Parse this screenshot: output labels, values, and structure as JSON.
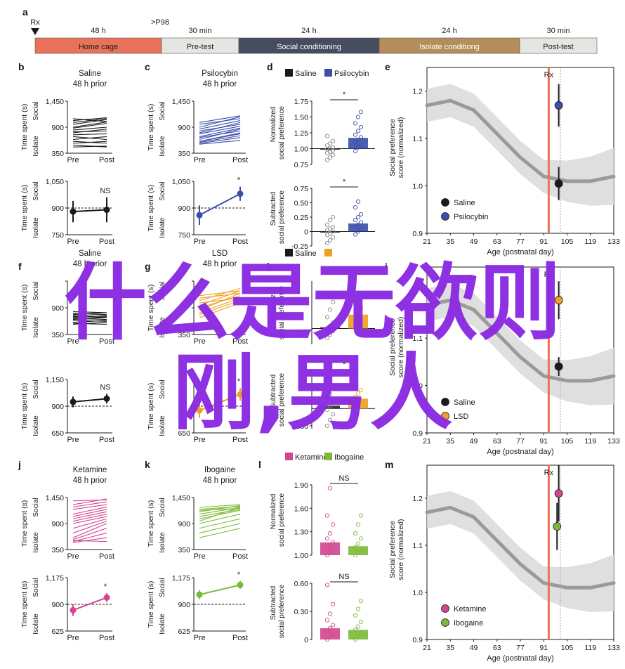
{
  "timeline": {
    "panel_label": "a",
    "rx_label": "Rx",
    "p98_label": ">P98",
    "segments": [
      {
        "label": "Home cage",
        "duration": "48 h",
        "color": "#e8735a"
      },
      {
        "label": "Pre-test",
        "duration": "30 min",
        "color": "#e5e6e1"
      },
      {
        "label": "Social conditioning",
        "duration": "24 h",
        "color": "#454d5e"
      },
      {
        "label": "Isolate conditiong",
        "duration": "24 h",
        "color": "#b38e5a"
      },
      {
        "label": "Post-test",
        "duration": "30 min",
        "color": "#e5e6e1"
      }
    ]
  },
  "overlay": {
    "line1": "什么是无欲则",
    "line2": "刚,男人"
  },
  "chart_data": [
    {
      "id": "b",
      "type": "line",
      "title": "Saline",
      "subtitle": "48 h prior",
      "color": "#1a1a1a",
      "xcategories": [
        "Pre",
        "Post"
      ],
      "ylabel": "Time spent (s)",
      "yside_top": "Social",
      "yside_bottom": "Isolate",
      "ylim": [
        350,
        1450
      ],
      "yticks": [
        "1,450",
        "900",
        "350"
      ],
      "pairs": [
        [
          1080,
          1020
        ],
        [
          1040,
          1100
        ],
        [
          1000,
          1080
        ],
        [
          960,
          1060
        ],
        [
          900,
          1010
        ],
        [
          880,
          980
        ],
        [
          840,
          900
        ],
        [
          800,
          820
        ],
        [
          780,
          860
        ],
        [
          740,
          760
        ],
        [
          700,
          640
        ],
        [
          640,
          700
        ],
        [
          600,
          560
        ],
        [
          560,
          600
        ],
        [
          520,
          480
        ],
        [
          480,
          500
        ]
      ]
    },
    {
      "id": "b2",
      "type": "line",
      "color": "#1a1a1a",
      "xcategories": [
        "Pre",
        "Post"
      ],
      "ylabel": "Time spent (s)",
      "yside_top": "Social",
      "yside_bottom": "Isolate",
      "ylim": [
        750,
        1050
      ],
      "yticks": [
        "1,050",
        "900",
        "750"
      ],
      "ref": 900,
      "annotation": "NS",
      "means": [
        880,
        890
      ],
      "err": [
        60,
        70
      ]
    },
    {
      "id": "c",
      "type": "line",
      "title": "Psilocybin",
      "subtitle": "48 h prior",
      "color": "#3b4ea8",
      "xcategories": [
        "Pre",
        "Post"
      ],
      "ylabel": "Time spent (s)",
      "yside_top": "Social",
      "yside_bottom": "Isolate",
      "ylim": [
        350,
        1450
      ],
      "yticks": [
        "1,450",
        "900",
        "350"
      ],
      "pairs": [
        [
          1000,
          1140
        ],
        [
          960,
          1080
        ],
        [
          900,
          1120
        ],
        [
          860,
          1040
        ],
        [
          820,
          960
        ],
        [
          780,
          1000
        ],
        [
          760,
          920
        ],
        [
          700,
          880
        ],
        [
          680,
          820
        ],
        [
          640,
          860
        ],
        [
          600,
          780
        ],
        [
          580,
          720
        ],
        [
          560,
          680
        ],
        [
          540,
          620
        ],
        [
          600,
          760
        ]
      ]
    },
    {
      "id": "c2",
      "type": "line",
      "color": "#3b4ea8",
      "xcategories": [
        "Pre",
        "Post"
      ],
      "ylabel": "Time spent (s)",
      "yside_top": "Social",
      "yside_bottom": "Isolate",
      "ylim": [
        750,
        1050
      ],
      "yticks": [
        "1,050",
        "900",
        "750"
      ],
      "ref": 900,
      "annotation": "*",
      "means": [
        860,
        980
      ],
      "err": [
        55,
        40
      ]
    },
    {
      "id": "d",
      "type": "bar",
      "legend": [
        "Saline",
        "Psilocybin"
      ],
      "colors": [
        "#1a1a1a",
        "#3b4ea8"
      ],
      "ylabel": "Normalized social preference",
      "ylim": [
        0.75,
        1.75
      ],
      "yticks": [
        "1.75",
        "1.50",
        "1.25",
        "1.00",
        "0.75"
      ],
      "ref": 1.0,
      "annotation": "*",
      "values": [
        0.99,
        1.17
      ],
      "points": [
        [
          0.82,
          0.86,
          0.9,
          0.93,
          0.95,
          0.97,
          0.99,
          1.0,
          1.02,
          1.05,
          1.08,
          1.12,
          1.2
        ],
        [
          0.96,
          1.02,
          1.06,
          1.1,
          1.14,
          1.18,
          1.22,
          1.28,
          1.34,
          1.4,
          1.5,
          1.58
        ]
      ]
    },
    {
      "id": "d2",
      "type": "bar",
      "colors": [
        "#1a1a1a",
        "#3b4ea8"
      ],
      "ylabel": "Subtracted social preference",
      "ylim": [
        -0.25,
        0.75
      ],
      "yticks": [
        "0.75",
        "0.50",
        "0.25",
        "0",
        "-0.25"
      ],
      "ref": 0,
      "annotation": "*",
      "values": [
        0.0,
        0.14
      ],
      "points": [
        [
          -0.2,
          -0.15,
          -0.1,
          -0.06,
          -0.03,
          0.0,
          0.02,
          0.05,
          0.08,
          0.12,
          0.2,
          0.25
        ],
        [
          -0.05,
          0.0,
          0.04,
          0.08,
          0.12,
          0.16,
          0.2,
          0.25,
          0.3,
          0.42,
          0.52
        ]
      ]
    },
    {
      "id": "e",
      "type": "scatter",
      "title": "Rx",
      "ylabel": "Social preference score (normalized)",
      "xlabel": "Age (postnatal day)",
      "xlim": [
        21,
        133
      ],
      "xticks": [
        21,
        35,
        49,
        63,
        77,
        91,
        105,
        119,
        133
      ],
      "ylim": [
        0.9,
        1.25
      ],
      "yticks": [
        0.9,
        1.0,
        1.1,
        1.2
      ],
      "rx": 94,
      "dotted": 101,
      "trend": [
        [
          21,
          1.17
        ],
        [
          35,
          1.18
        ],
        [
          49,
          1.16
        ],
        [
          63,
          1.11
        ],
        [
          77,
          1.06
        ],
        [
          91,
          1.02
        ],
        [
          105,
          1.01
        ],
        [
          119,
          1.01
        ],
        [
          133,
          1.02
        ]
      ],
      "series": [
        {
          "name": "Saline",
          "color": "#1a1a1a",
          "x": 100,
          "y": 1.005,
          "err": 0.035
        },
        {
          "name": "Psilocybin",
          "color": "#3b4ea8",
          "x": 100,
          "y": 1.17,
          "err": 0.045
        }
      ]
    },
    {
      "id": "f",
      "type": "line",
      "title": "Saline",
      "subtitle": "48 h prior",
      "color": "#1a1a1a",
      "xcategories": [
        "Pre",
        "Post"
      ],
      "ylabel": "Time spent (s)",
      "yside_top": "Social",
      "yside_bottom": "Isolate",
      "ylim": [
        350,
        1450
      ],
      "yticks": [
        "",
        "900",
        "350"
      ],
      "pairs": [
        [
          820,
          800
        ],
        [
          780,
          760
        ],
        [
          760,
          800
        ],
        [
          740,
          720
        ],
        [
          720,
          700
        ],
        [
          700,
          740
        ],
        [
          680,
          660
        ],
        [
          660,
          700
        ],
        [
          640,
          620
        ],
        [
          600,
          640
        ],
        [
          580,
          560
        ],
        [
          560,
          600
        ]
      ]
    },
    {
      "id": "f2",
      "type": "line",
      "color": "#1a1a1a",
      "xcategories": [
        "Pre",
        "Post"
      ],
      "ylabel": "Time spent (s)",
      "yside_top": "Social",
      "yside_bottom": "Isolate",
      "ylim": [
        650,
        1150
      ],
      "yticks": [
        "1,150",
        "900",
        "650"
      ],
      "ref": 900,
      "annotation": "NS",
      "means": [
        940,
        970
      ],
      "err": [
        50,
        45
      ]
    },
    {
      "id": "g",
      "type": "line",
      "title": "LSD",
      "subtitle": "48 h prior",
      "color": "#f0a020",
      "xcategories": [
        "Pre",
        "Post"
      ],
      "ylabel": "Time spent (s)",
      "yside_top": "Social",
      "yside_bottom": "Isolate",
      "ylim": [
        350,
        1450
      ],
      "yticks": [
        "",
        "",
        "350"
      ],
      "pairs": [
        [
          1150,
          1250
        ],
        [
          1100,
          1200
        ],
        [
          1050,
          1300
        ],
        [
          1000,
          1100
        ],
        [
          950,
          1250
        ],
        [
          900,
          1150
        ],
        [
          850,
          1200
        ],
        [
          800,
          1100
        ],
        [
          760,
          1050
        ],
        [
          700,
          1000
        ]
      ]
    },
    {
      "id": "g2",
      "type": "line",
      "color": "#f0a020",
      "xcategories": [
        "Pre",
        "Post"
      ],
      "ylabel": "Time spent (s)",
      "yside_top": "Social",
      "yside_bottom": "Isolate",
      "ylim": [
        650,
        1150
      ],
      "yticks": [
        "",
        "",
        "650"
      ],
      "ref": 900,
      "annotation": "*",
      "means": [
        860,
        1010
      ],
      "err": [
        70,
        60
      ]
    },
    {
      "id": "h",
      "type": "bar",
      "legend": [
        "Saline",
        ""
      ],
      "colors": [
        "#1a1a1a",
        "#f0a020"
      ],
      "ylabel": "Normalized social preference",
      "ylim": [
        0.75,
        1.75
      ],
      "yticks": [],
      "ref": 1.0,
      "annotation": "",
      "values": [
        1.02,
        1.22
      ],
      "points": [
        [
          0.85,
          0.9,
          0.96,
          1.0,
          1.04,
          1.1,
          1.18,
          1.3,
          1.42
        ],
        [
          1.0,
          1.08,
          1.14,
          1.2,
          1.26,
          1.32,
          1.4,
          1.5
        ]
      ]
    },
    {
      "id": "h2",
      "type": "bar",
      "colors": [
        "#1a1a1a",
        "#f0a020"
      ],
      "ylabel": "Subtracted social preference",
      "ylim": [
        -0.35,
        0.65
      ],
      "yticks": [
        "-0.30"
      ],
      "ref": 0,
      "annotation": "*",
      "values": [
        0.05,
        0.17
      ],
      "points": [
        [
          -0.3,
          -0.2,
          -0.1,
          -0.02,
          0.04,
          0.1,
          0.18,
          0.25
        ],
        [
          0.02,
          0.08,
          0.14,
          0.2,
          0.26,
          0.32,
          0.4
        ]
      ]
    },
    {
      "id": "i",
      "type": "scatter",
      "title": "Rx",
      "ylabel": "Social preference score (normalized)",
      "xlabel": "Age (postnatal day)",
      "xlim": [
        21,
        133
      ],
      "xticks": [
        21,
        35,
        49,
        63,
        77,
        91,
        105,
        119,
        133
      ],
      "ylim": [
        0.9,
        1.25
      ],
      "yticks": [
        0.9,
        1.0,
        1.1
      ],
      "rx": 94,
      "dotted": 101,
      "trend": [
        [
          21,
          1.17
        ],
        [
          35,
          1.18
        ],
        [
          49,
          1.16
        ],
        [
          63,
          1.11
        ],
        [
          77,
          1.06
        ],
        [
          91,
          1.02
        ],
        [
          105,
          1.01
        ],
        [
          119,
          1.01
        ],
        [
          133,
          1.02
        ]
      ],
      "series": [
        {
          "name": "Saline",
          "color": "#1a1a1a",
          "x": 100,
          "y": 1.04,
          "err": 0.02
        },
        {
          "name": "LSD",
          "color": "#f0a020",
          "x": 100,
          "y": 1.18,
          "err": 0.04
        }
      ]
    },
    {
      "id": "j",
      "type": "line",
      "title": "Ketamine",
      "subtitle": "48 h prior",
      "color": "#d1468f",
      "xcategories": [
        "Pre",
        "Post"
      ],
      "ylabel": "Time spent (s)",
      "yside_top": "Social",
      "yside_bottom": "Isolate",
      "ylim": [
        350,
        1450
      ],
      "yticks": [
        "1,450",
        "900",
        "350"
      ],
      "pairs": [
        [
          1380,
          1400
        ],
        [
          1300,
          1420
        ],
        [
          1250,
          1360
        ],
        [
          1200,
          1300
        ],
        [
          1100,
          1250
        ],
        [
          1050,
          1200
        ],
        [
          1000,
          1150
        ],
        [
          950,
          1100
        ],
        [
          900,
          1050
        ],
        [
          800,
          1000
        ],
        [
          700,
          950
        ],
        [
          600,
          900
        ],
        [
          560,
          800
        ],
        [
          520,
          700
        ],
        [
          500,
          600
        ],
        [
          540,
          520
        ]
      ]
    },
    {
      "id": "j2",
      "type": "line",
      "color": "#d1468f",
      "xcategories": [
        "Pre",
        "Post"
      ],
      "ylabel": "Time spent (s)",
      "yside_top": "Social",
      "yside_bottom": "Isolate",
      "ylim": [
        625,
        1175
      ],
      "yticks": [
        "1,175",
        "900",
        "625"
      ],
      "ref": 900,
      "annotation": "*",
      "means": [
        840,
        970
      ],
      "err": [
        60,
        45
      ]
    },
    {
      "id": "k",
      "type": "line",
      "title": "Ibogaine",
      "subtitle": "48 h prior",
      "color": "#7cb938",
      "xcategories": [
        "Pre",
        "Post"
      ],
      "ylabel": "Time spent (s)",
      "yside_top": "Social",
      "yside_bottom": "Isolate",
      "ylim": [
        350,
        1450
      ],
      "yticks": [
        "1,450",
        "900",
        "350"
      ],
      "pairs": [
        [
          1240,
          1300
        ],
        [
          1200,
          1260
        ],
        [
          1180,
          1220
        ],
        [
          1150,
          1280
        ],
        [
          1100,
          1240
        ],
        [
          1050,
          1200
        ],
        [
          1000,
          1180
        ],
        [
          950,
          1250
        ],
        [
          900,
          1100
        ],
        [
          800,
          1000
        ],
        [
          700,
          900
        ],
        [
          600,
          800
        ]
      ]
    },
    {
      "id": "k2",
      "type": "line",
      "color": "#7cb938",
      "xcategories": [
        "Pre",
        "Post"
      ],
      "ylabel": "Time spent (s)",
      "yside_top": "Social",
      "yside_bottom": "Isolate",
      "ylim": [
        625,
        1175
      ],
      "yticks": [
        "1,175",
        "900",
        "625"
      ],
      "ref": 900,
      "annotation": "*",
      "means": [
        1000,
        1100
      ],
      "err": [
        45,
        40
      ]
    },
    {
      "id": "l",
      "type": "bar",
      "legend": [
        "Ketamine",
        "Ibogaine"
      ],
      "colors": [
        "#d1468f",
        "#7cb938"
      ],
      "ylabel": "Normalized social preference",
      "ylim": [
        1.0,
        2.1
      ],
      "yticks": [
        "1.90",
        "1.60",
        "1.30",
        "1.00"
      ],
      "ref": null,
      "annotation": "NS",
      "values": [
        1.2,
        1.14
      ],
      "points": [
        [
          1.0,
          1.04,
          1.08,
          1.12,
          1.16,
          1.2,
          1.26,
          1.34,
          1.48,
          1.62,
          2.05
        ],
        [
          1.0,
          1.04,
          1.08,
          1.12,
          1.18,
          1.26,
          1.34,
          1.48,
          1.62
        ]
      ]
    },
    {
      "id": "l2",
      "type": "bar",
      "colors": [
        "#d1468f",
        "#7cb938"
      ],
      "ylabel": "Subtracted social preference",
      "ylim": [
        0,
        0.7
      ],
      "yticks": [
        "0.60",
        "0.30",
        "0"
      ],
      "ref": null,
      "annotation": "NS",
      "values": [
        0.14,
        0.12
      ],
      "points": [
        [
          0.0,
          0.03,
          0.06,
          0.1,
          0.14,
          0.18,
          0.24,
          0.32,
          0.44,
          0.68
        ],
        [
          0.0,
          0.04,
          0.08,
          0.12,
          0.16,
          0.22,
          0.3,
          0.38,
          0.48
        ]
      ]
    },
    {
      "id": "m",
      "type": "scatter",
      "title": "Rx",
      "ylabel": "Social preference score (normalized)",
      "xlabel": "Age (postnatal day)",
      "xlim": [
        21,
        133
      ],
      "xticks": [
        21,
        35,
        49,
        63,
        77,
        91,
        105,
        119,
        133
      ],
      "ylim": [
        0.9,
        1.27
      ],
      "yticks": [
        0.9,
        1.0,
        1.1,
        1.2
      ],
      "rx": 94,
      "dotted": 101,
      "trend": [
        [
          21,
          1.17
        ],
        [
          35,
          1.18
        ],
        [
          49,
          1.16
        ],
        [
          63,
          1.11
        ],
        [
          77,
          1.06
        ],
        [
          91,
          1.02
        ],
        [
          105,
          1.01
        ],
        [
          119,
          1.01
        ],
        [
          133,
          1.02
        ]
      ],
      "series": [
        {
          "name": "Ketamine",
          "color": "#d1468f",
          "x": 100,
          "y": 1.21,
          "err": 0.06
        },
        {
          "name": "Ibogaine",
          "color": "#7cb938",
          "x": 99,
          "y": 1.14,
          "err": 0.05
        }
      ]
    }
  ]
}
